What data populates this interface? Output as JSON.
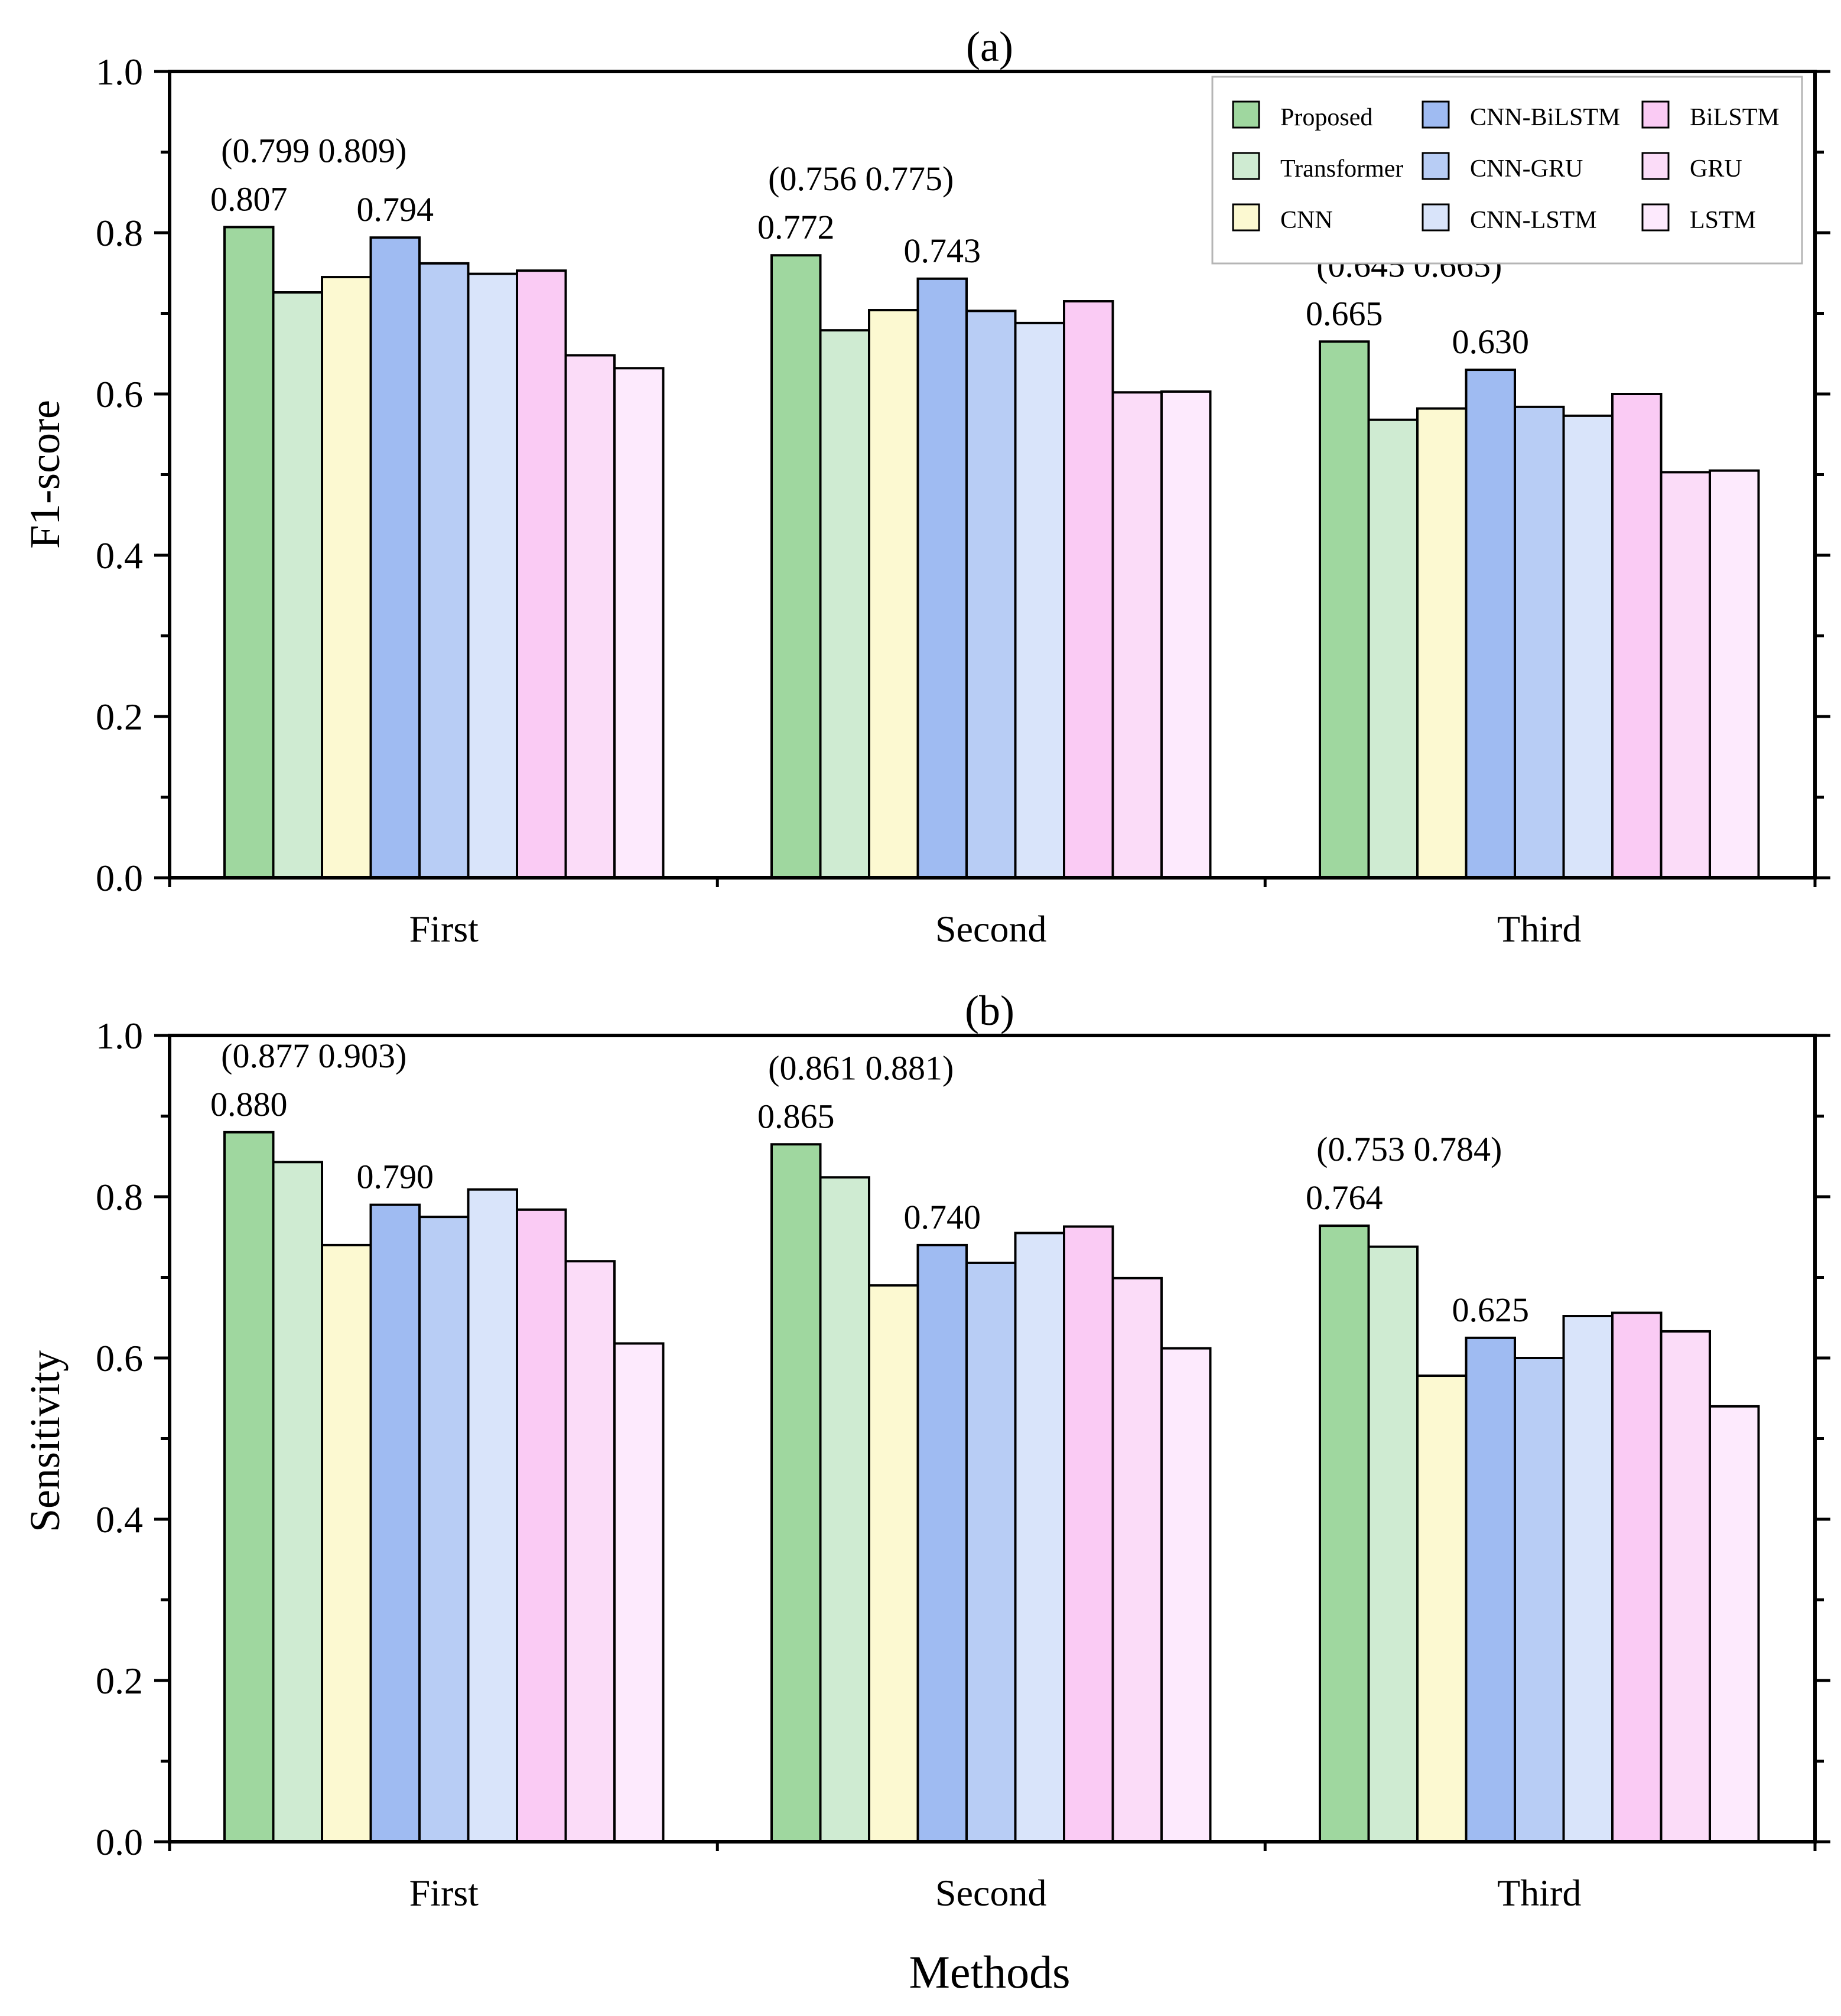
{
  "figure": {
    "xlabel": "Methods"
  },
  "legend": {
    "items": [
      {
        "name": "Proposed",
        "color": "#9fd79f"
      },
      {
        "name": "Transformer",
        "color": "#cfebd2"
      },
      {
        "name": "CNN",
        "color": "#fcf9d1"
      },
      {
        "name": "CNN-BiLSTM",
        "color": "#9fbbf2"
      },
      {
        "name": "CNN-GRU",
        "color": "#b8cdf5"
      },
      {
        "name": "CNN-LSTM",
        "color": "#d9e4fa"
      },
      {
        "name": "BiLSTM",
        "color": "#facbf4"
      },
      {
        "name": "GRU",
        "color": "#fbdcf8"
      },
      {
        "name": "LSTM",
        "color": "#fdeafd"
      }
    ]
  },
  "chart_data": [
    {
      "type": "bar",
      "title": "(a)",
      "xlabel": "",
      "ylabel": "F1-score",
      "ylim": [
        0,
        1.0
      ],
      "yticks": [
        "0.0",
        "0.2",
        "0.4",
        "0.6",
        "0.8",
        "1.0"
      ],
      "categories": [
        "First",
        "Second",
        "Third"
      ],
      "series": [
        {
          "name": "Proposed",
          "values": [
            0.807,
            0.772,
            0.665
          ]
        },
        {
          "name": "Transformer",
          "values": [
            0.726,
            0.679,
            0.568
          ]
        },
        {
          "name": "CNN",
          "values": [
            0.745,
            0.704,
            0.582
          ]
        },
        {
          "name": "CNN-BiLSTM",
          "values": [
            0.794,
            0.743,
            0.63
          ]
        },
        {
          "name": "CNN-GRU",
          "values": [
            0.762,
            0.703,
            0.584
          ]
        },
        {
          "name": "CNN-LSTM",
          "values": [
            0.749,
            0.688,
            0.573
          ]
        },
        {
          "name": "BiLSTM",
          "values": [
            0.753,
            0.715,
            0.6
          ]
        },
        {
          "name": "GRU",
          "values": [
            0.648,
            0.602,
            0.503
          ]
        },
        {
          "name": "LSTM",
          "values": [
            0.632,
            0.603,
            0.505
          ]
        }
      ],
      "annotations": [
        {
          "category": "First",
          "ci": "(0.799 0.809)",
          "proposed": "0.807",
          "second": "0.794"
        },
        {
          "category": "Second",
          "ci": "(0.756 0.775)",
          "proposed": "0.772",
          "second": "0.743"
        },
        {
          "category": "Third",
          "ci": "(0.645 0.665)",
          "proposed": "0.665",
          "second": "0.630"
        }
      ],
      "legend": "top-right"
    },
    {
      "type": "bar",
      "title": "(b)",
      "xlabel": "Methods",
      "ylabel": "Sensitivity",
      "ylim": [
        0,
        1.0
      ],
      "yticks": [
        "0.0",
        "0.2",
        "0.4",
        "0.6",
        "0.8",
        "1.0"
      ],
      "categories": [
        "First",
        "Second",
        "Third"
      ],
      "series": [
        {
          "name": "Proposed",
          "values": [
            0.88,
            0.865,
            0.764
          ]
        },
        {
          "name": "Transformer",
          "values": [
            0.843,
            0.824,
            0.738
          ]
        },
        {
          "name": "CNN",
          "values": [
            0.74,
            0.69,
            0.578
          ]
        },
        {
          "name": "CNN-BiLSTM",
          "values": [
            0.79,
            0.74,
            0.625
          ]
        },
        {
          "name": "CNN-GRU",
          "values": [
            0.775,
            0.718,
            0.6
          ]
        },
        {
          "name": "CNN-LSTM",
          "values": [
            0.809,
            0.755,
            0.652
          ]
        },
        {
          "name": "BiLSTM",
          "values": [
            0.784,
            0.763,
            0.656
          ]
        },
        {
          "name": "GRU",
          "values": [
            0.72,
            0.699,
            0.633
          ]
        },
        {
          "name": "LSTM",
          "values": [
            0.618,
            0.612,
            0.54
          ]
        }
      ],
      "annotations": [
        {
          "category": "First",
          "ci": "(0.877 0.903)",
          "proposed": "0.880",
          "second": "0.790"
        },
        {
          "category": "Second",
          "ci": "(0.861 0.881)",
          "proposed": "0.865",
          "second": "0.740"
        },
        {
          "category": "Third",
          "ci": "(0.753 0.784)",
          "proposed": "0.764",
          "second": "0.625"
        }
      ]
    }
  ]
}
